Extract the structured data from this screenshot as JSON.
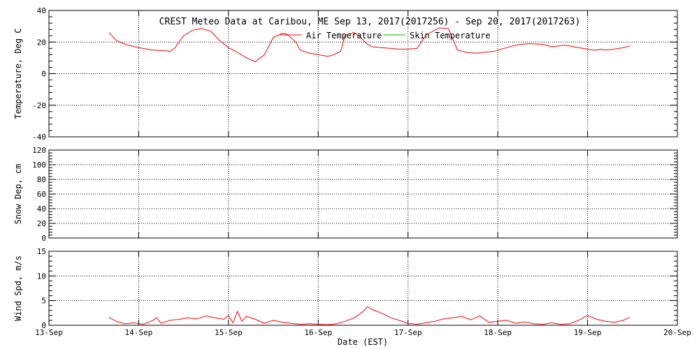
{
  "chart_data": [
    {
      "type": "line",
      "title": "CREST Meteo Data at Caribou, ME   Sep 13, 2017(2017256) - Sep 20, 2017(2017263)",
      "ylabel": "Temperature, Deg C",
      "ylim": [
        -40,
        40
      ],
      "yticks": [
        "-40",
        "-20",
        "0",
        "20",
        "40"
      ],
      "legend": {
        "placement": "top-center",
        "entries": [
          {
            "label": "Air Temperature",
            "color": "#ff0000"
          },
          {
            "label": "Skin Temperature",
            "color": "#00c000"
          }
        ]
      },
      "grid": true,
      "series": [
        {
          "name": "Air Temperature",
          "color": "#ff0000",
          "x": [
            0.67,
            0.75,
            0.85,
            1.0,
            1.15,
            1.3,
            1.35,
            1.4,
            1.5,
            1.6,
            1.7,
            1.8,
            1.9,
            2.0,
            2.1,
            2.2,
            2.3,
            2.4,
            2.5,
            2.6,
            2.65,
            2.75,
            2.8,
            2.9,
            3.0,
            3.1,
            3.15,
            3.25,
            3.3,
            3.4,
            3.45,
            3.55,
            3.6,
            3.7,
            3.8,
            3.9,
            4.0,
            4.1,
            4.2,
            4.3,
            4.35,
            4.45,
            4.55,
            4.65,
            4.75,
            4.85,
            4.95,
            5.1,
            5.2,
            5.25,
            5.35,
            5.5,
            5.6,
            5.75,
            5.9,
            6.0,
            6.05,
            6.1,
            6.15,
            6.2,
            6.3,
            6.4,
            6.47
          ],
          "values": [
            26,
            21,
            18.5,
            16.5,
            15,
            14.5,
            14,
            16,
            24,
            27.5,
            28.5,
            27,
            21,
            16.5,
            13.5,
            10,
            7.5,
            12,
            23,
            25.5,
            25,
            20,
            15,
            13,
            12,
            11,
            11.5,
            14,
            24.5,
            26,
            24,
            18.5,
            17,
            16.5,
            16,
            15.5,
            15.5,
            16,
            24.5,
            27.5,
            29,
            28.5,
            15,
            13.5,
            13,
            13.5,
            14,
            16.5,
            18,
            18.5,
            19,
            18.5,
            17,
            18,
            16.5,
            15.5,
            15,
            15,
            15.5,
            15,
            15.5,
            16.5,
            17.5
          ]
        },
        {
          "name": "Skin Temperature",
          "color": "#00c000",
          "x": [],
          "values": []
        }
      ]
    },
    {
      "type": "line",
      "ylabel": "Snow Dep, cm",
      "ylim": [
        0,
        120
      ],
      "yticks": [
        "0",
        "20",
        "40",
        "60",
        "80",
        "100",
        "120"
      ],
      "grid": true,
      "series": []
    },
    {
      "type": "line",
      "ylabel": "Wind Spd, m/s",
      "ylim": [
        0,
        15
      ],
      "yticks": [
        "0",
        "5",
        "10",
        "15"
      ],
      "grid": true,
      "series": [
        {
          "color": "#ff0000",
          "x": [
            0.67,
            0.75,
            0.85,
            0.95,
            1.05,
            1.15,
            1.2,
            1.25,
            1.35,
            1.45,
            1.55,
            1.65,
            1.75,
            1.85,
            1.95,
            2.0,
            2.05,
            2.1,
            2.15,
            2.2,
            2.3,
            2.4,
            2.5,
            2.6,
            2.7,
            2.8,
            2.9,
            3.0,
            3.1,
            3.2,
            3.3,
            3.4,
            3.5,
            3.55,
            3.6,
            3.7,
            3.8,
            3.9,
            4.0,
            4.1,
            4.2,
            4.3,
            4.4,
            4.5,
            4.6,
            4.7,
            4.8,
            4.9,
            5.0,
            5.1,
            5.2,
            5.3,
            5.4,
            5.5,
            5.6,
            5.7,
            5.8,
            5.9,
            6.0,
            6.1,
            6.2,
            6.3,
            6.4,
            6.47
          ],
          "values": [
            1.6,
            0.8,
            0.3,
            0.5,
            0.2,
            0.9,
            1.5,
            0.4,
            1.0,
            1.2,
            1.5,
            1.3,
            1.9,
            1.5,
            1.2,
            2.0,
            0.5,
            2.8,
            0.8,
            1.8,
            1.2,
            0.4,
            1.0,
            0.6,
            0.4,
            0.2,
            0.3,
            0.2,
            0.1,
            0.3,
            0.8,
            1.5,
            2.8,
            3.8,
            3.2,
            2.5,
            1.6,
            1.0,
            0.4,
            0.2,
            0.5,
            0.8,
            1.3,
            1.5,
            1.8,
            1.1,
            1.9,
            0.6,
            0.8,
            1.0,
            0.4,
            0.7,
            0.3,
            0.2,
            0.5,
            0.2,
            0.3,
            1.0,
            2.0,
            1.2,
            0.8,
            0.6,
            1.0,
            1.6
          ]
        }
      ]
    }
  ],
  "x_axis": {
    "label": "Date (EST)",
    "ticks": [
      "13-Sep",
      "14-Sep",
      "15-Sep",
      "16-Sep",
      "17-Sep",
      "18-Sep",
      "19-Sep",
      "20-Sep"
    ]
  }
}
